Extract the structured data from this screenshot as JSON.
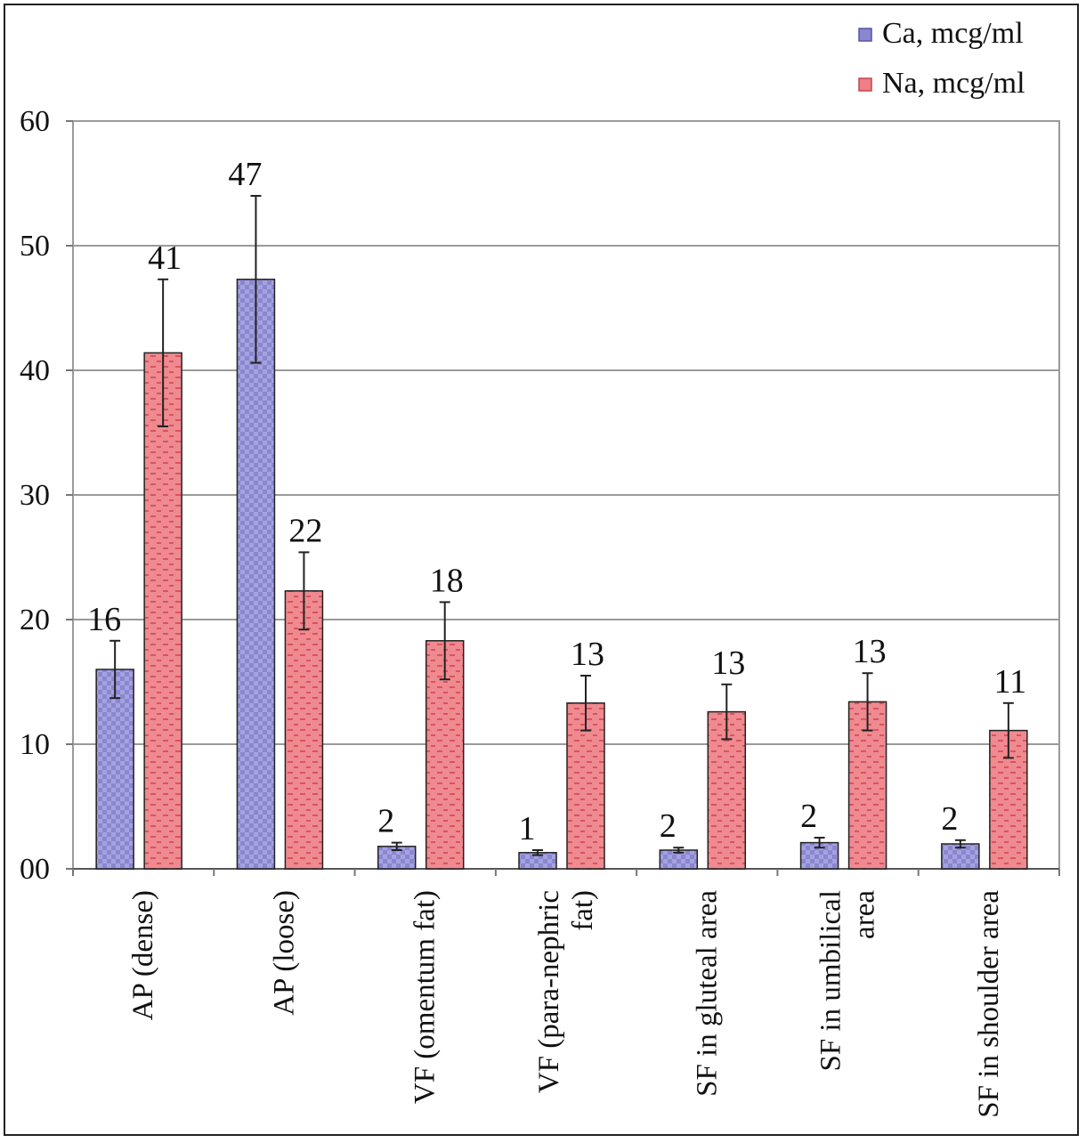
{
  "chart_data": {
    "type": "bar",
    "categories": [
      [
        "AP (dense)"
      ],
      [
        "AP (loose)"
      ],
      [
        "VF (omentum fat)"
      ],
      [
        "VF (para-nephric",
        "fat)"
      ],
      [
        "SF in gluteal area"
      ],
      [
        "SF in umbilical",
        "area"
      ],
      [
        "SF in shoulder area"
      ]
    ],
    "series": [
      {
        "name": "Ca, mcg/ml",
        "values": [
          16,
          47.3,
          1.8,
          1.3,
          1.5,
          2.1,
          2.0
        ],
        "errors": [
          2.3,
          6.7,
          0.3,
          0.2,
          0.2,
          0.4,
          0.3
        ],
        "labels": [
          "16",
          "47",
          "2",
          "1",
          "2",
          "2",
          "2"
        ],
        "color": "#8a87cf",
        "dark": "#5553a3"
      },
      {
        "name": "Na, mcg/ml",
        "values": [
          41.4,
          22.3,
          18.3,
          13.3,
          12.6,
          13.4,
          11.1
        ],
        "errors": [
          5.9,
          3.1,
          3.1,
          2.2,
          2.2,
          2.3,
          2.2
        ],
        "labels": [
          "41",
          "22",
          "18",
          "13",
          "13",
          "13",
          "11"
        ],
        "color": "#ee7f86",
        "dark": "#c4474f"
      }
    ],
    "yticks": [
      "00",
      "10",
      "20",
      "30",
      "40",
      "50",
      "60"
    ],
    "ylim": [
      0,
      60
    ],
    "grid": true,
    "legend_position": "top-right",
    "error_bars": true
  }
}
